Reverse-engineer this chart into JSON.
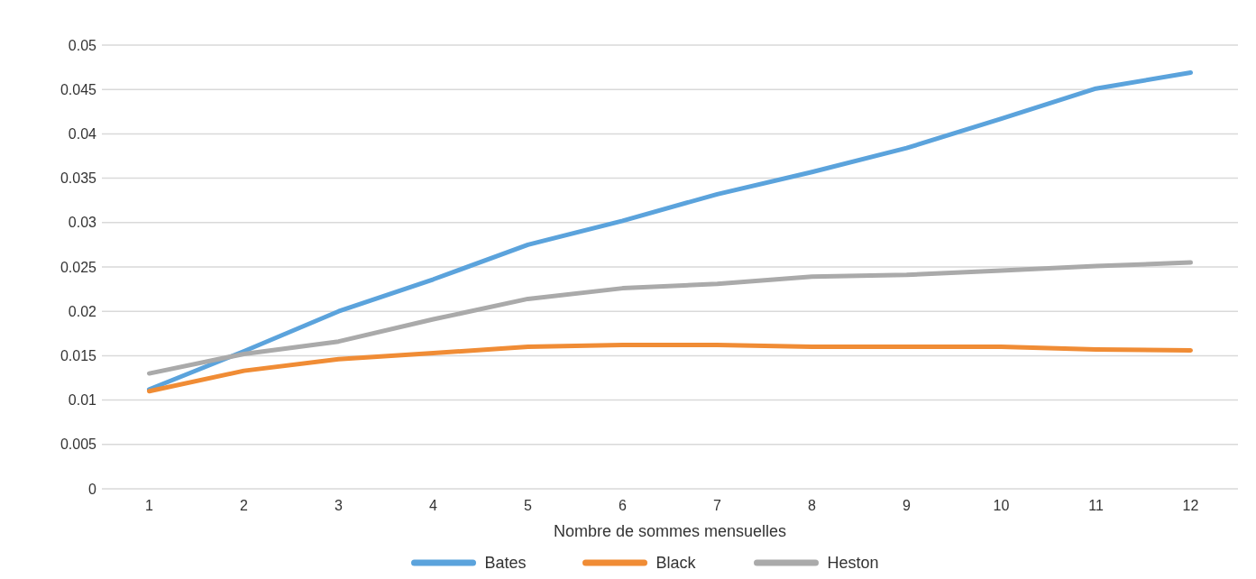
{
  "chart_data": {
    "type": "line",
    "xlabel": "Nombre de sommes mensuelles",
    "categories": [
      "1",
      "2",
      "3",
      "4",
      "5",
      "6",
      "7",
      "8",
      "9",
      "10",
      "11",
      "12"
    ],
    "series": [
      {
        "name": "Bates",
        "color": "#5ba3dc",
        "values": [
          0.0112,
          0.0155,
          0.02,
          0.0236,
          0.0275,
          0.0302,
          0.0332,
          0.0357,
          0.0384,
          0.0417,
          0.0451,
          0.0469
        ]
      },
      {
        "name": "Black",
        "color": "#f08c35",
        "values": [
          0.011,
          0.0133,
          0.0146,
          0.0153,
          0.016,
          0.0162,
          0.0162,
          0.016,
          0.016,
          0.016,
          0.0157,
          0.0156
        ]
      },
      {
        "name": "Heston",
        "color": "#aaaaaa",
        "values": [
          0.013,
          0.0152,
          0.0166,
          0.0191,
          0.0214,
          0.0226,
          0.0231,
          0.0239,
          0.0241,
          0.0246,
          0.0251,
          0.0255
        ]
      }
    ],
    "ylim": [
      0,
      0.05
    ],
    "yticks": [
      0,
      0.005,
      0.01,
      0.015,
      0.02,
      0.025,
      0.03,
      0.035,
      0.04,
      0.045,
      0.05
    ],
    "grid": "y",
    "legend": "bottom",
    "marker": "none",
    "line_style": "solid"
  }
}
